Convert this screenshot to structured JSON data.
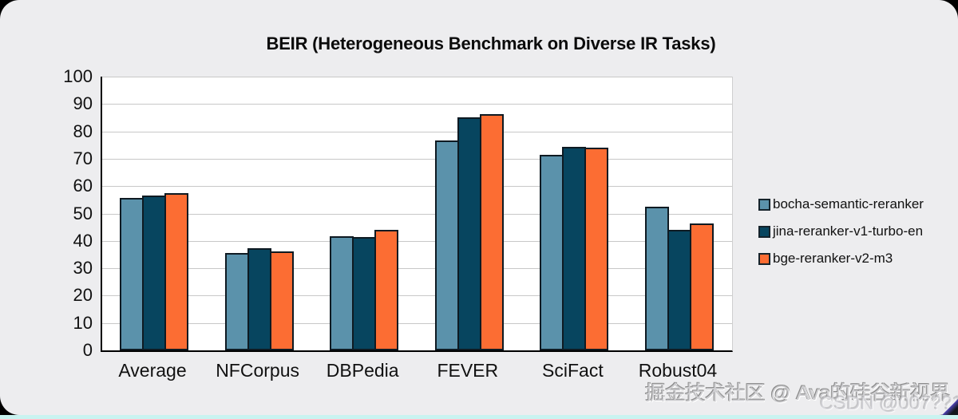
{
  "chart_data": {
    "type": "bar",
    "title": "BEIR (Heterogeneous Benchmark on Diverse IR Tasks)",
    "categories": [
      "Average",
      "NFCorpus",
      "DBPedia",
      "FEVER",
      "SciFact",
      "Robust04"
    ],
    "series": [
      {
        "name": "bocha-semantic-reranker",
        "color": "#5b92ab",
        "values": [
          55.7,
          35.6,
          41.7,
          76.8,
          71.4,
          52.4
        ]
      },
      {
        "name": "jina-reranker-v1-turbo-en",
        "color": "#07455f",
        "values": [
          56.5,
          37.3,
          41.3,
          85.1,
          74.4,
          44.1
        ]
      },
      {
        "name": "bge-reranker-v2-m3",
        "color": "#fc6d33",
        "values": [
          57.5,
          36.1,
          43.9,
          86.2,
          74.1,
          46.3
        ]
      }
    ],
    "xlabel": "",
    "ylabel": "",
    "ylim": [
      0,
      100
    ],
    "ytick_step": 10,
    "grid": true,
    "legend_position": "right",
    "bar_border_color": "#0e1a22",
    "gridline_color": "#c8c8c8",
    "plot_background": "#ffffff"
  },
  "watermarks": {
    "community": "掘金技术社区 @ Ava的硅谷新视界",
    "csdn": "CSDN @007??1"
  },
  "colors": {
    "page_background": "#000000",
    "card_background": "#ededef",
    "bottom_strip": "#c9f3f0",
    "axis_color": "#000000",
    "text_color": "#111111"
  }
}
